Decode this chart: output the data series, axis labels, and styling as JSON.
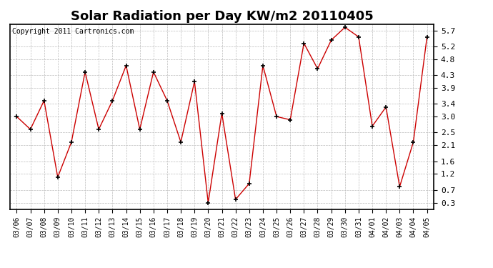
{
  "title": "Solar Radiation per Day KW/m2 20110405",
  "copyright": "Copyright 2011 Cartronics.com",
  "dates": [
    "03/06",
    "03/07",
    "03/08",
    "03/09",
    "03/10",
    "03/11",
    "03/12",
    "03/13",
    "03/14",
    "03/15",
    "03/16",
    "03/17",
    "03/18",
    "03/19",
    "03/20",
    "03/21",
    "03/22",
    "03/23",
    "03/24",
    "03/25",
    "03/26",
    "03/27",
    "03/28",
    "03/29",
    "03/30",
    "03/31",
    "04/01",
    "04/02",
    "04/03",
    "04/04",
    "04/05"
  ],
  "values": [
    3.0,
    2.6,
    3.5,
    1.1,
    2.2,
    4.4,
    2.6,
    3.5,
    4.6,
    2.6,
    4.4,
    3.5,
    2.2,
    4.1,
    0.3,
    3.1,
    0.4,
    0.9,
    4.6,
    3.0,
    2.9,
    5.3,
    4.5,
    5.4,
    5.8,
    5.5,
    2.7,
    3.3,
    0.8,
    2.2,
    5.5
  ],
  "line_color": "#cc0000",
  "marker": "+",
  "background_color": "#ffffff",
  "plot_bg_color": "#ffffff",
  "grid_color": "#bbbbbb",
  "yticks": [
    0.3,
    0.7,
    1.2,
    1.6,
    2.1,
    2.5,
    3.0,
    3.4,
    3.9,
    4.3,
    4.8,
    5.2,
    5.7
  ],
  "ylim": [
    0.1,
    5.9
  ],
  "title_fontsize": 13,
  "copyright_fontsize": 7,
  "tick_fontsize": 7,
  "ytick_fontsize": 8
}
